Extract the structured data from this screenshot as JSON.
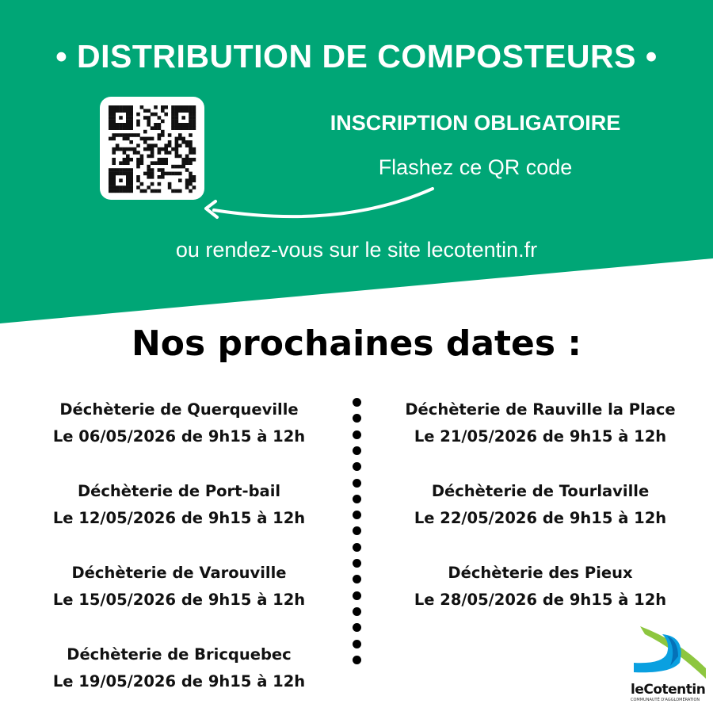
{
  "header": {
    "title": "• DISTRIBUTION DE COMPOSTEURS •",
    "subtitle": "INSCRIPTION OBLIGATOIRE",
    "qr_text": "Flashez ce QR code",
    "site_text": "ou rendez-vous sur le site lecotentin.fr"
  },
  "section_title": "Nos prochaines dates :",
  "left": [
    {
      "place": "Déchèterie de Querqueville",
      "date": "Le 06/05/2026 de 9h15 à 12h"
    },
    {
      "place": "Déchèterie de Port-bail",
      "date": "Le 12/05/2026 de 9h15 à 12h"
    },
    {
      "place": "Déchèterie de Varouville",
      "date": "Le 15/05/2026 de 9h15 à 12h"
    },
    {
      "place": "Déchèterie de Bricquebec",
      "date": "Le 19/05/2026 de 9h15 à 12h"
    }
  ],
  "right": [
    {
      "place": "Déchèterie de Rauville la Place",
      "date": "Le 21/05/2026 de 9h15 à 12h"
    },
    {
      "place": "Déchèterie de Tourlaville",
      "date": "Le 22/05/2026 de 9h15 à 12h"
    },
    {
      "place": "Déchèterie des Pieux",
      "date": "Le 28/05/2026 de 9h15 à 12h"
    }
  ],
  "logo": {
    "name": "leCotentin",
    "tagline": "COMMUNAUTÉ D'AGGLOMÉRATION"
  },
  "colors": {
    "green": "#00A676",
    "blue": "#0AA0E0",
    "lime": "#8DC63F"
  }
}
